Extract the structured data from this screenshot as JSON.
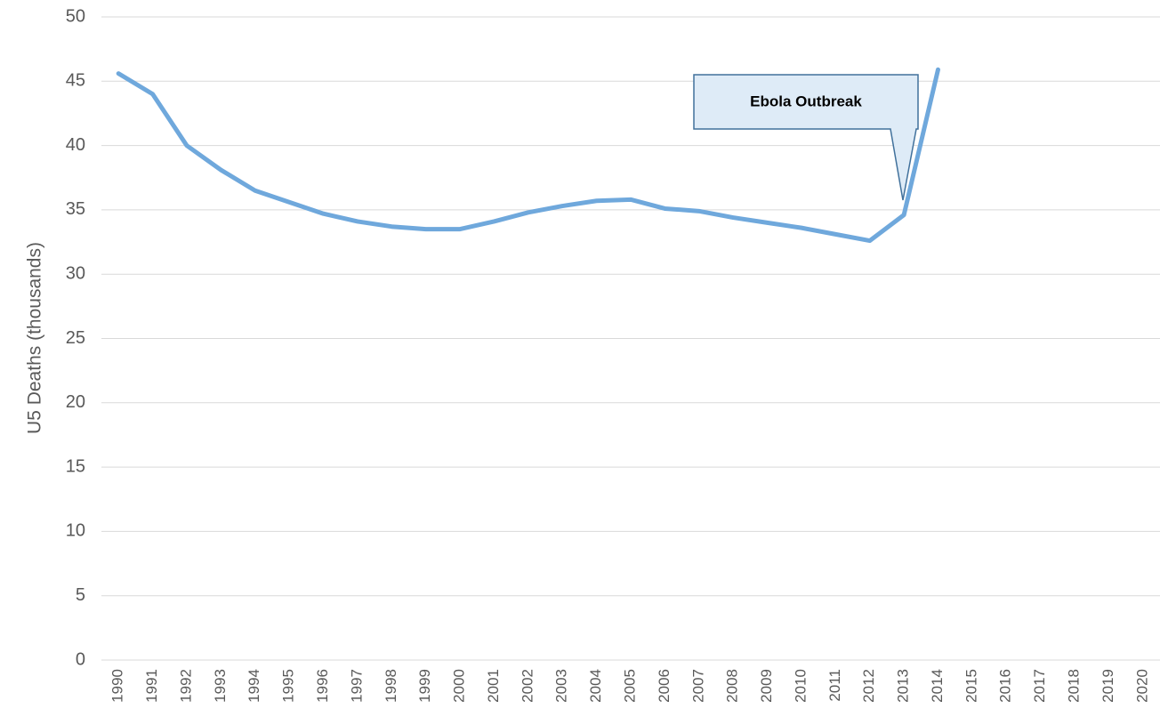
{
  "chart_data": {
    "type": "line",
    "y_label": "U5 Deaths (thousands)",
    "annotation": "Ebola Outbreak",
    "categories": [
      "1990",
      "1991",
      "1992",
      "1993",
      "1994",
      "1995",
      "1996",
      "1997",
      "1998",
      "1999",
      "2000",
      "2001",
      "2002",
      "2003",
      "2004",
      "2005",
      "2006",
      "2007",
      "2008",
      "2009",
      "2010",
      "2011",
      "2012",
      "2013",
      "2014",
      "2015",
      "2016",
      "2017",
      "2018",
      "2019",
      "2020"
    ],
    "series": [
      {
        "color": "#6fa8dc",
        "values": [
          45.6,
          44.0,
          40.0,
          38.1,
          36.5,
          35.6,
          34.7,
          34.1,
          33.7,
          33.5,
          33.5,
          34.1,
          34.8,
          35.3,
          35.7,
          35.8,
          35.1,
          34.9,
          34.4,
          34.0,
          33.6,
          33.1,
          32.6,
          34.6,
          45.9,
          null,
          null,
          null,
          null,
          null,
          null
        ]
      }
    ],
    "ylim": [
      0,
      50
    ],
    "yticks": [
      0,
      5,
      10,
      15,
      20,
      25,
      30,
      35,
      40,
      45,
      50
    ],
    "grid": true
  }
}
